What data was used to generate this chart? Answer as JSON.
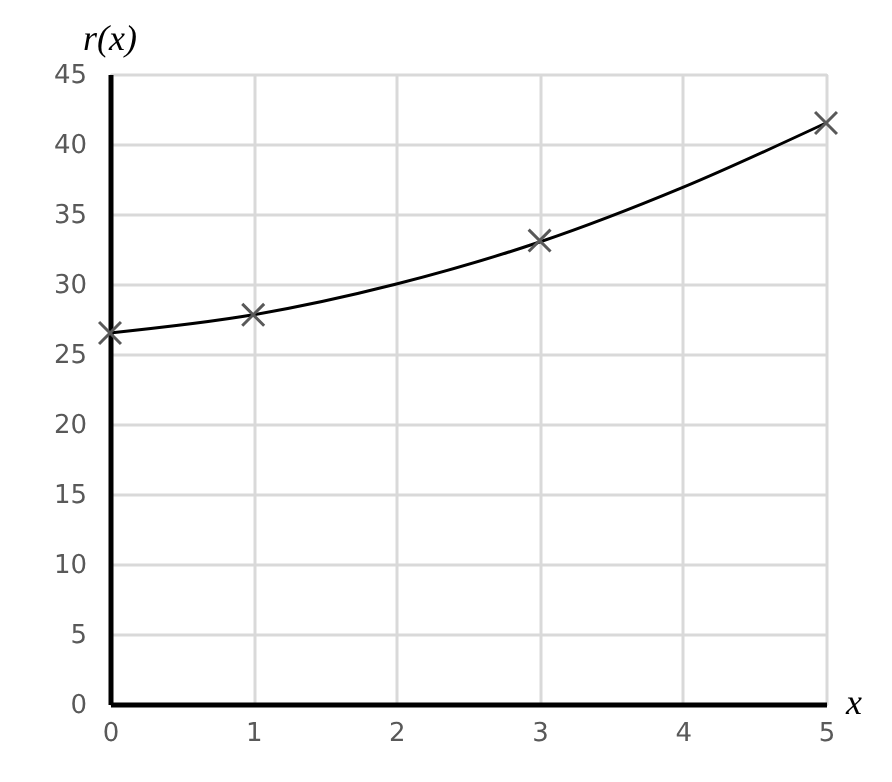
{
  "chart_data": {
    "type": "line",
    "xlabel": "x",
    "ylabel": "r(x)",
    "xlim": [
      0,
      5
    ],
    "xticks": [
      0,
      1,
      2,
      3,
      4,
      5
    ],
    "ylim": [
      0,
      45
    ],
    "yticks": [
      0,
      5,
      10,
      15,
      20,
      25,
      30,
      35,
      40,
      45
    ],
    "grid": true,
    "series": [
      {
        "color": "#000000",
        "marker": "none",
        "line_style": "solid",
        "x": [
          0,
          1,
          2,
          3,
          4,
          5
        ],
        "values": [
          26.5,
          27.8,
          30.0,
          33.0,
          36.9,
          41.5
        ]
      },
      {
        "type": "scatter",
        "color": "#595959",
        "marker": "cross",
        "x": [
          0,
          1,
          3,
          5
        ],
        "values": [
          26.5,
          27.8,
          33.1,
          41.5
        ]
      }
    ]
  }
}
